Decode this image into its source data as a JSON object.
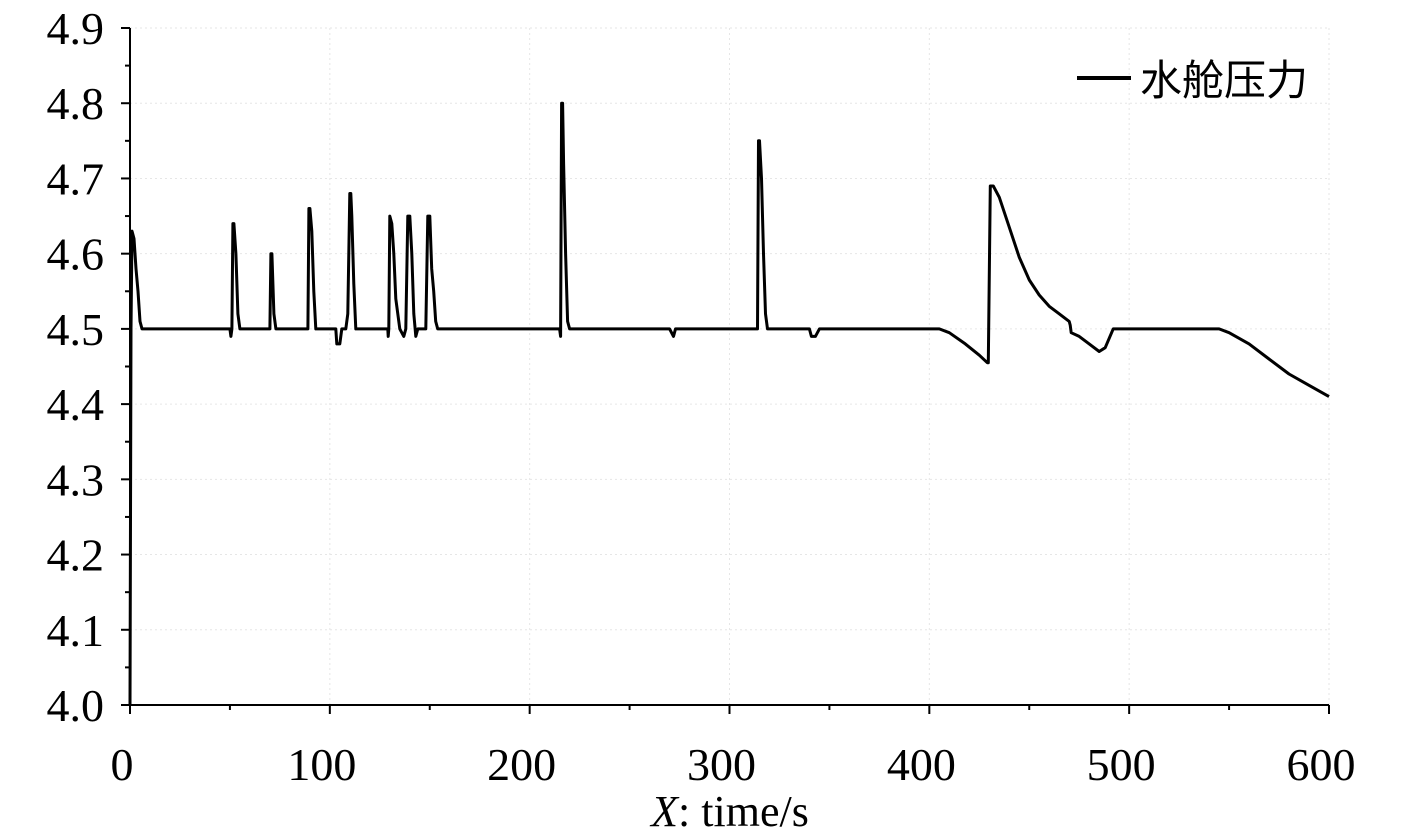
{
  "chart_data": {
    "type": "line",
    "xlabel_var": "X",
    "xlabel_rest": ": time/s",
    "ylabel": "",
    "xlim": [
      0,
      600
    ],
    "ylim": [
      4.0,
      4.9
    ],
    "x_ticks": [
      0,
      100,
      200,
      300,
      400,
      500,
      600
    ],
    "y_ticks": [
      4.0,
      4.1,
      4.2,
      4.3,
      4.4,
      4.5,
      4.6,
      4.7,
      4.8,
      4.9
    ],
    "x_tick_labels": [
      "0",
      "100",
      "200",
      "300",
      "400",
      "500",
      "600"
    ],
    "y_tick_labels": [
      "4.0",
      "4.1",
      "4.2",
      "4.3",
      "4.4",
      "4.5",
      "4.6",
      "4.7",
      "4.8",
      "4.9"
    ],
    "grid": true,
    "legend_position": "top-right",
    "series": [
      {
        "name": "水舱压力",
        "color": "#000000",
        "points": [
          [
            0,
            4.0
          ],
          [
            0.5,
            4.5
          ],
          [
            1,
            4.63
          ],
          [
            2,
            4.62
          ],
          [
            3,
            4.58
          ],
          [
            4,
            4.55
          ],
          [
            5,
            4.51
          ],
          [
            6,
            4.5
          ],
          [
            10,
            4.5
          ],
          [
            50,
            4.5
          ],
          [
            50.5,
            4.49
          ],
          [
            51,
            4.5
          ],
          [
            51.5,
            4.64
          ],
          [
            52,
            4.64
          ],
          [
            53,
            4.6
          ],
          [
            54,
            4.52
          ],
          [
            55,
            4.5
          ],
          [
            69,
            4.5
          ],
          [
            70,
            4.5
          ],
          [
            70.5,
            4.6
          ],
          [
            71,
            4.6
          ],
          [
            72,
            4.52
          ],
          [
            73,
            4.5
          ],
          [
            89,
            4.5
          ],
          [
            89.5,
            4.66
          ],
          [
            90,
            4.66
          ],
          [
            91,
            4.63
          ],
          [
            92,
            4.55
          ],
          [
            93,
            4.5
          ],
          [
            103,
            4.5
          ],
          [
            103.5,
            4.48
          ],
          [
            105,
            4.48
          ],
          [
            106,
            4.5
          ],
          [
            108,
            4.5
          ],
          [
            109,
            4.52
          ],
          [
            110,
            4.68
          ],
          [
            110.5,
            4.68
          ],
          [
            111,
            4.65
          ],
          [
            112,
            4.56
          ],
          [
            113,
            4.5
          ],
          [
            129,
            4.5
          ],
          [
            129.2,
            4.49
          ],
          [
            129.5,
            4.5
          ],
          [
            130,
            4.65
          ],
          [
            131,
            4.64
          ],
          [
            132,
            4.6
          ],
          [
            133,
            4.54
          ],
          [
            135,
            4.5
          ],
          [
            137,
            4.49
          ],
          [
            138,
            4.5
          ],
          [
            139,
            4.65
          ],
          [
            140,
            4.65
          ],
          [
            141,
            4.6
          ],
          [
            142,
            4.52
          ],
          [
            143,
            4.49
          ],
          [
            144,
            4.5
          ],
          [
            148,
            4.5
          ],
          [
            149,
            4.65
          ],
          [
            150,
            4.65
          ],
          [
            151,
            4.58
          ],
          [
            152,
            4.55
          ],
          [
            153,
            4.51
          ],
          [
            154,
            4.5
          ],
          [
            200,
            4.5
          ],
          [
            215,
            4.5
          ],
          [
            215.5,
            4.49
          ],
          [
            216,
            4.8
          ],
          [
            216.5,
            4.8
          ],
          [
            217,
            4.72
          ],
          [
            218,
            4.6
          ],
          [
            219,
            4.51
          ],
          [
            220,
            4.5
          ],
          [
            270,
            4.5
          ],
          [
            272,
            4.49
          ],
          [
            273,
            4.5
          ],
          [
            314,
            4.5
          ],
          [
            314.5,
            4.75
          ],
          [
            315,
            4.75
          ],
          [
            316,
            4.7
          ],
          [
            317,
            4.6
          ],
          [
            318,
            4.52
          ],
          [
            319,
            4.5
          ],
          [
            340,
            4.5
          ],
          [
            341,
            4.49
          ],
          [
            343,
            4.49
          ],
          [
            345,
            4.5
          ],
          [
            405,
            4.5
          ],
          [
            410,
            4.495
          ],
          [
            418,
            4.48
          ],
          [
            425,
            4.465
          ],
          [
            429,
            4.455
          ],
          [
            429.5,
            4.455
          ],
          [
            430.5,
            4.69
          ],
          [
            432,
            4.69
          ],
          [
            435,
            4.675
          ],
          [
            440,
            4.635
          ],
          [
            445,
            4.595
          ],
          [
            450,
            4.565
          ],
          [
            455,
            4.545
          ],
          [
            460,
            4.53
          ],
          [
            465,
            4.52
          ],
          [
            470,
            4.51
          ],
          [
            470.5,
            4.505
          ],
          [
            471,
            4.495
          ],
          [
            475,
            4.49
          ],
          [
            480,
            4.48
          ],
          [
            485,
            4.47
          ],
          [
            488,
            4.475
          ],
          [
            492,
            4.5
          ],
          [
            500,
            4.5
          ],
          [
            545,
            4.5
          ],
          [
            550,
            4.495
          ],
          [
            560,
            4.48
          ],
          [
            570,
            4.46
          ],
          [
            580,
            4.44
          ],
          [
            590,
            4.425
          ],
          [
            600,
            4.41
          ]
        ]
      }
    ]
  }
}
